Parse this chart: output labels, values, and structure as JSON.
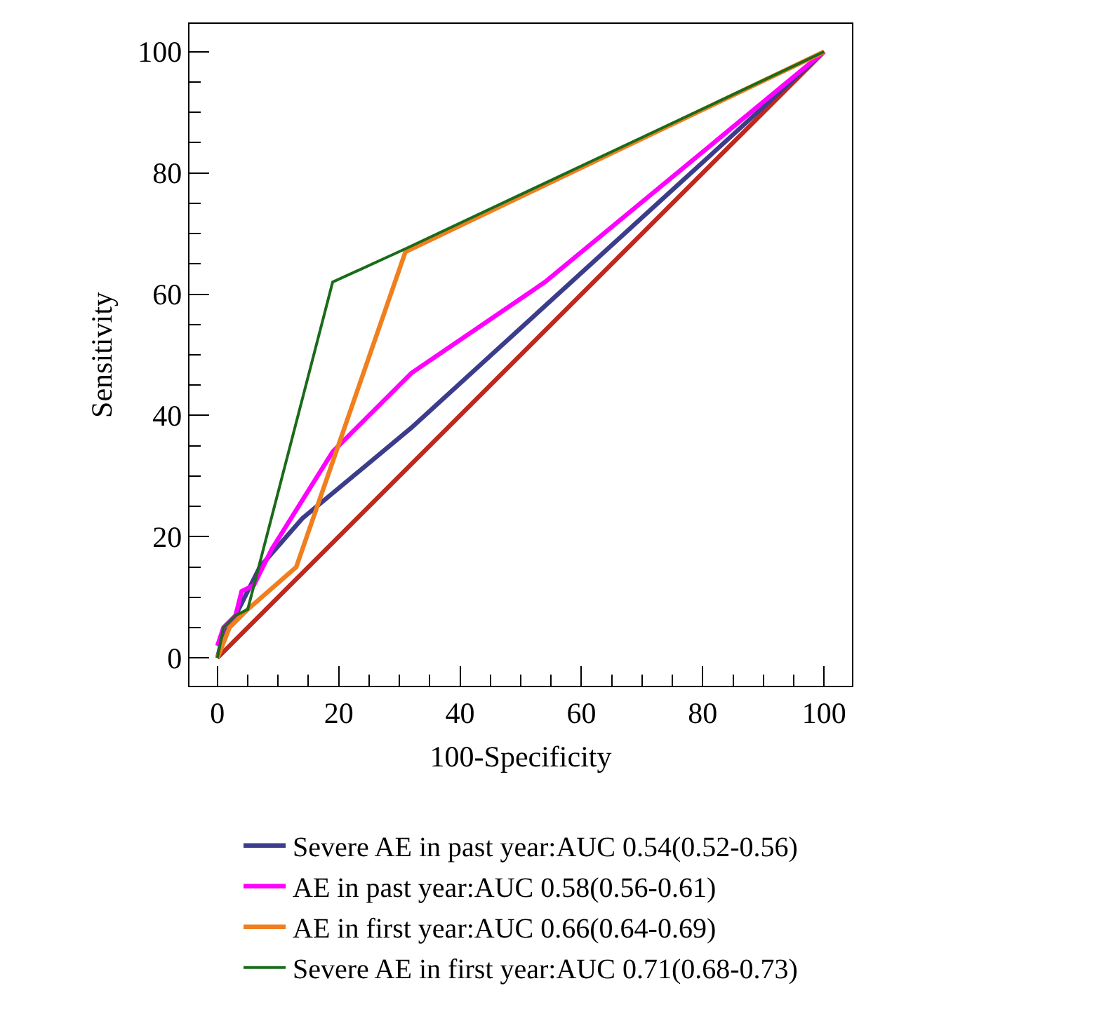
{
  "chart_data": {
    "type": "line",
    "xlabel": "100-Specificity",
    "ylabel": "Sensitivity",
    "xlim": [
      -4.6,
      104.6
    ],
    "ylim": [
      -4.6,
      104.6
    ],
    "xticks": [
      0,
      {
        "value": 5,
        "label": null
      },
      {
        "value": 10,
        "label": null
      },
      {
        "value": 15,
        "label": null
      },
      20,
      {
        "value": 25,
        "label": null
      },
      {
        "value": 30,
        "label": null
      },
      {
        "value": 35,
        "label": null
      },
      40,
      {
        "value": 45,
        "label": null
      },
      {
        "value": 50,
        "label": null
      },
      {
        "value": 55,
        "label": null
      },
      60,
      {
        "value": 65,
        "label": null
      },
      {
        "value": 70,
        "label": null
      },
      {
        "value": 75,
        "label": null
      },
      80,
      {
        "value": 85,
        "label": null
      },
      {
        "value": 90,
        "label": null
      },
      {
        "value": 95,
        "label": null
      },
      100
    ],
    "yticks": [
      0,
      {
        "value": 5,
        "label": null
      },
      {
        "value": 10,
        "label": null
      },
      {
        "value": 15,
        "label": null
      },
      20,
      {
        "value": 25,
        "label": null
      },
      {
        "value": 30,
        "label": null
      },
      {
        "value": 35,
        "label": null
      },
      40,
      {
        "value": 45,
        "label": null
      },
      {
        "value": 50,
        "label": null
      },
      {
        "value": 55,
        "label": null
      },
      60,
      {
        "value": 65,
        "label": null
      },
      {
        "value": 70,
        "label": null
      },
      {
        "value": 75,
        "label": null
      },
      80,
      {
        "value": 85,
        "label": null
      },
      {
        "value": 90,
        "label": null
      },
      {
        "value": 95,
        "label": null
      },
      100
    ],
    "grid": false,
    "legend": "bottom",
    "marker": "none",
    "line_style": "solid",
    "series": [
      {
        "color": "#c0281e",
        "x": [
          0,
          100
        ],
        "values": [
          0,
          100
        ]
      },
      {
        "name": "Severe AE in past year:AUC 0.54(0.52-0.56)",
        "color": "#3c3c8c",
        "x": [
          0,
          1,
          3,
          7,
          14,
          32,
          100
        ],
        "values": [
          0,
          4,
          7,
          15,
          23,
          38,
          100
        ]
      },
      {
        "name": "AE in past year:AUC 0.58(0.56-0.61)",
        "color": "#ff00ff",
        "x": [
          0,
          1,
          3,
          4,
          6,
          9,
          19,
          32,
          54,
          100
        ],
        "values": [
          2,
          5,
          7,
          11,
          12,
          18,
          34,
          47,
          62,
          100
        ]
      },
      {
        "name": "AE in first year:AUC 0.66(0.64-0.69)",
        "color": "#f07f1e",
        "x": [
          0,
          2,
          5,
          13,
          31,
          100
        ],
        "values": [
          0,
          5,
          8,
          15,
          67,
          100
        ]
      },
      {
        "name": "Severe AE in first year:AUC 0.71(0.68-0.73)",
        "color": "#1a6b1a",
        "x": [
          0,
          1,
          3,
          5,
          19,
          31,
          100
        ],
        "values": [
          0,
          5,
          7,
          8,
          62,
          67.5,
          100
        ]
      }
    ]
  }
}
